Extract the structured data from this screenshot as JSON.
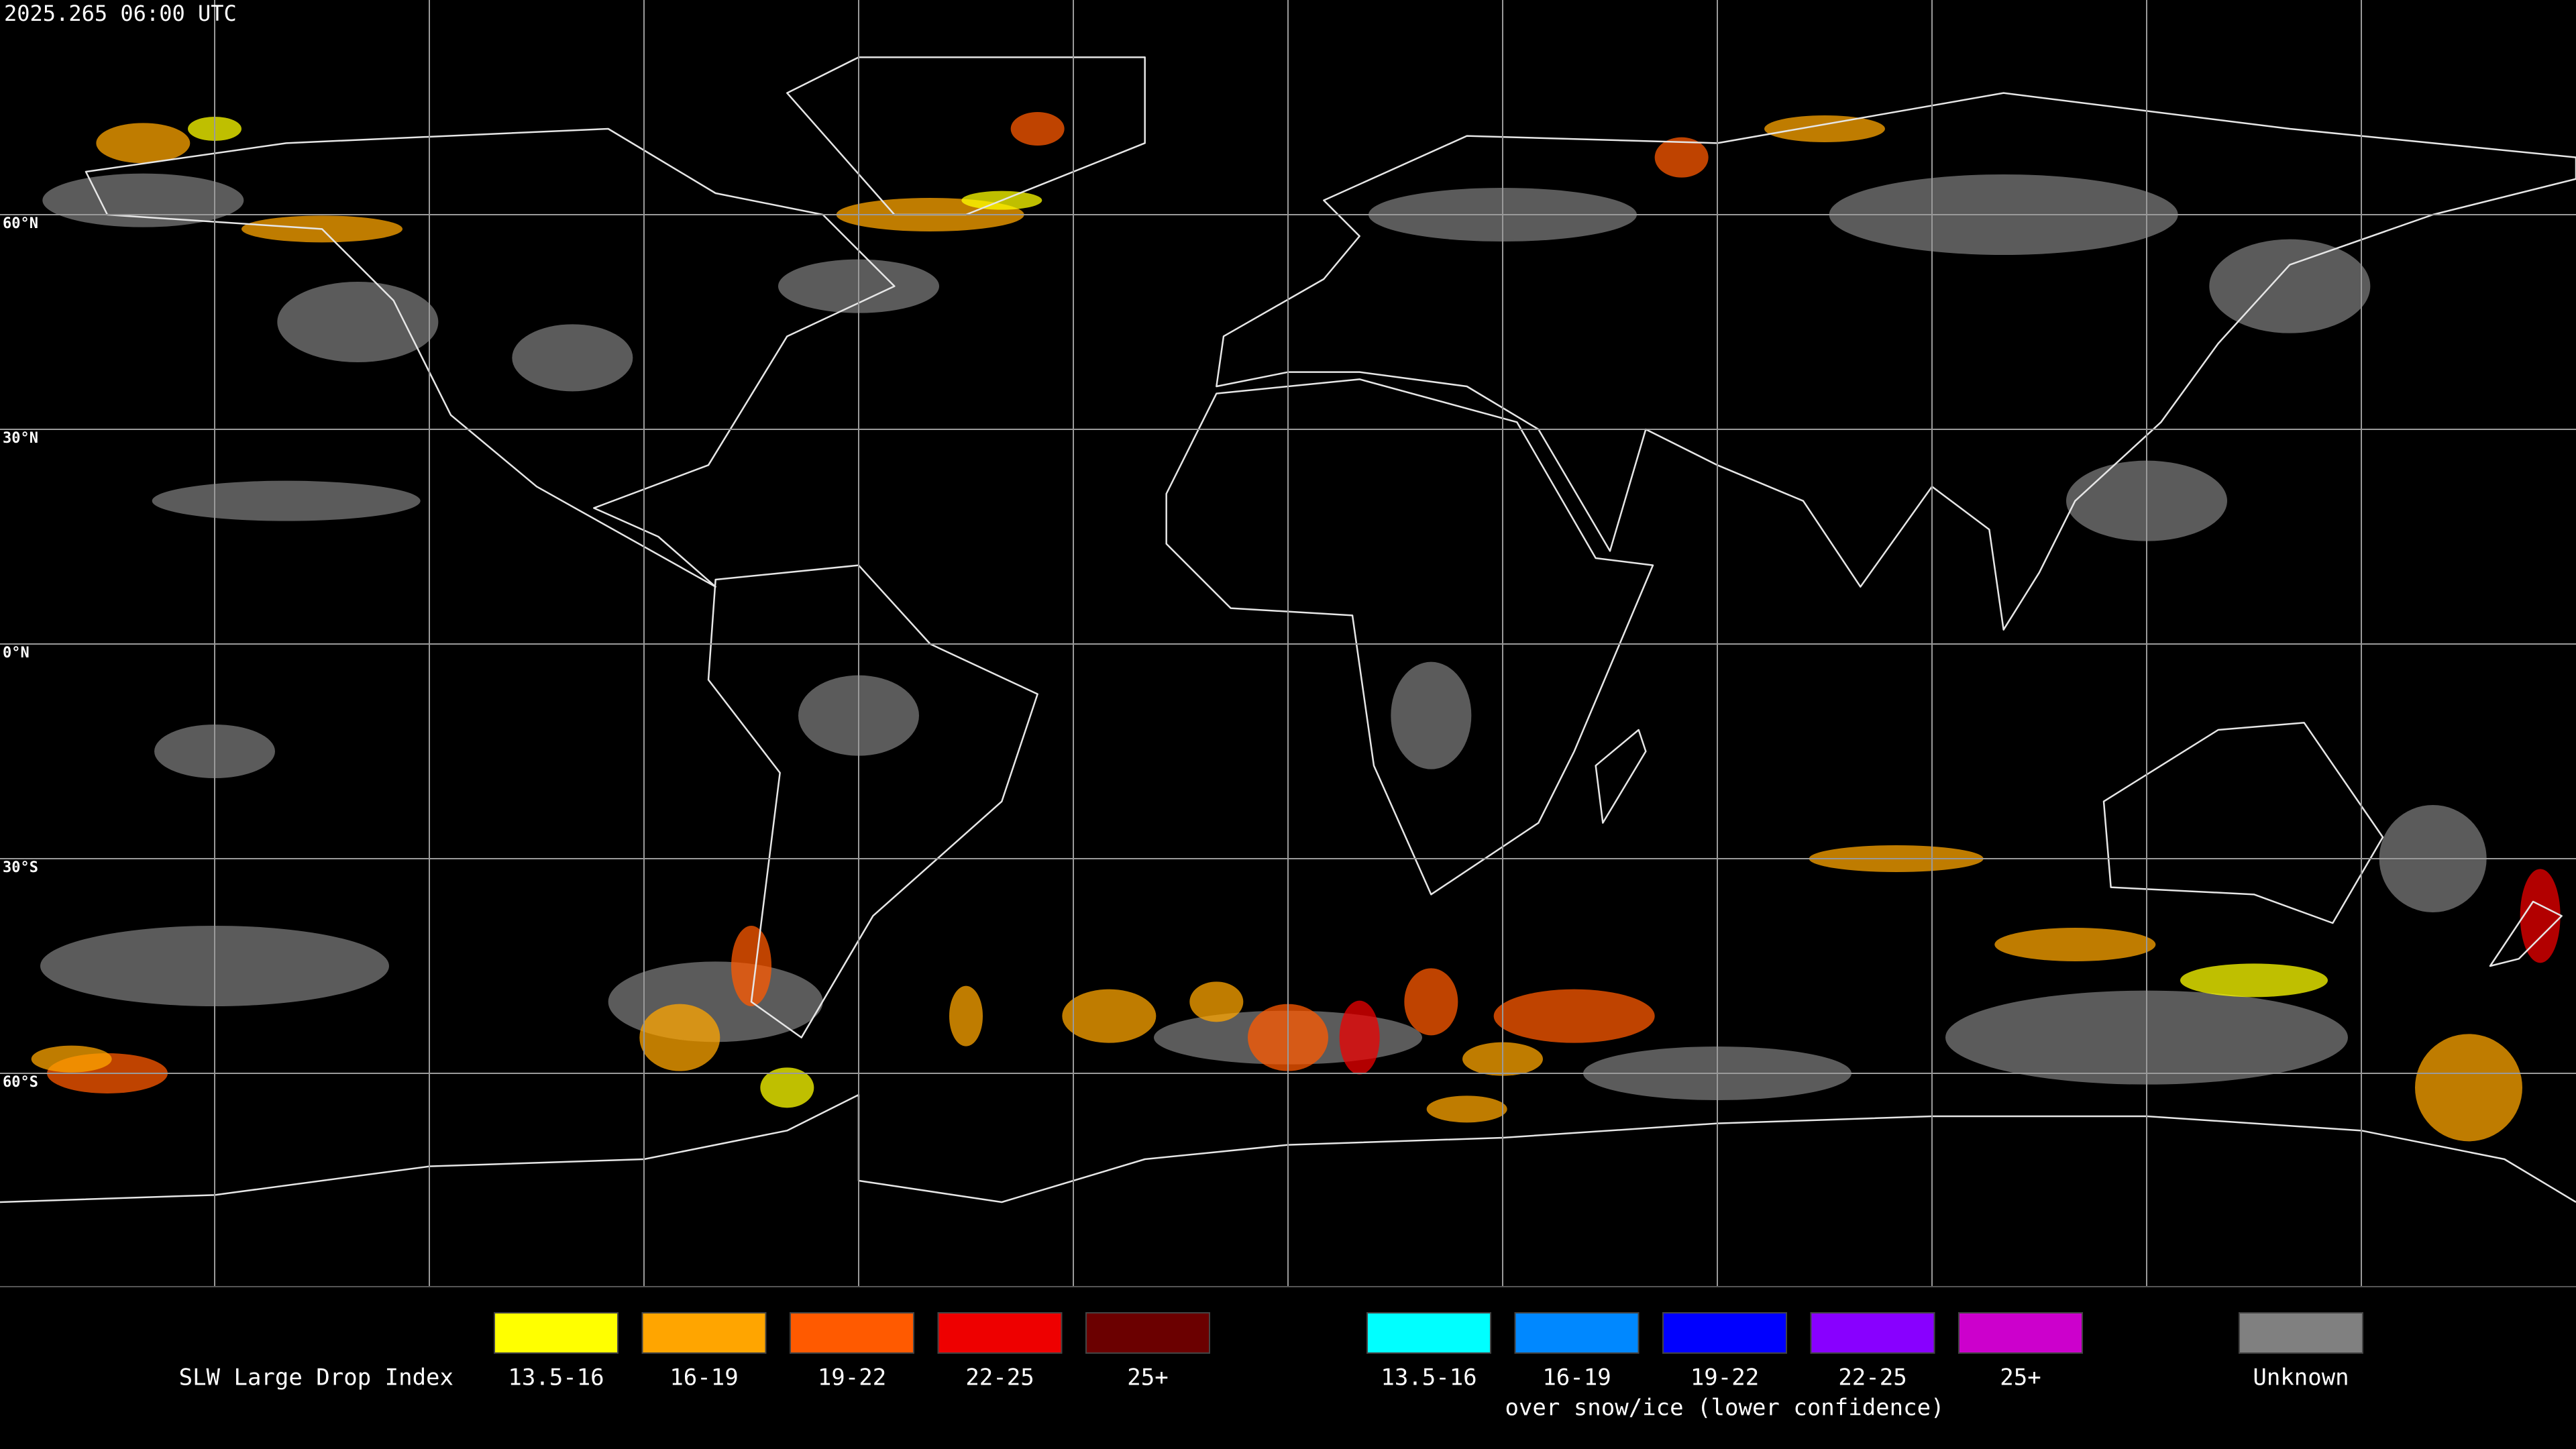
{
  "map": {
    "title": "2025.265 06:00 UTC",
    "lat_labels": [
      "60°N",
      "30°N",
      "0°N",
      "30°S",
      "60°S"
    ]
  },
  "legend": {
    "title": "SLW Large Drop Index",
    "items": [
      {
        "label": "13.5-16",
        "color": "#ffff00"
      },
      {
        "label": "16-19",
        "color": "#ffa500"
      },
      {
        "label": "19-22",
        "color": "#ff5a00"
      },
      {
        "label": "22-25",
        "color": "#ee0000"
      },
      {
        "label": "25+",
        "color": "#6b0000"
      }
    ],
    "snow_items": [
      {
        "label": "13.5-16",
        "color": "#00ffff"
      },
      {
        "label": "16-19",
        "color": "#0088ff"
      },
      {
        "label": "19-22",
        "color": "#0000ff"
      },
      {
        "label": "22-25",
        "color": "#8800ff"
      },
      {
        "label": "25+",
        "color": "#cc00cc"
      }
    ],
    "snow_note": "over snow/ice (lower confidence)",
    "unknown": {
      "label": "Unknown",
      "color": "#808080"
    }
  }
}
